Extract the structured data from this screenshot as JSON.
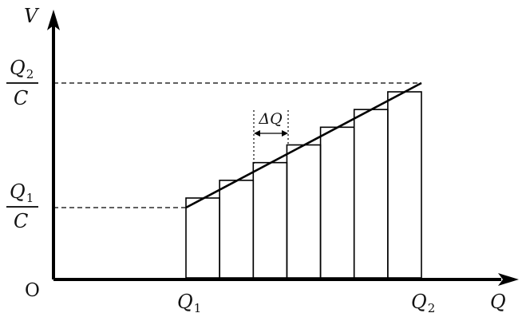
{
  "axes": {
    "y_label": "V",
    "x_label": "Q",
    "origin_label": "O"
  },
  "ticks": {
    "q1_label": "Q",
    "q1_sub": "1",
    "q2_label": "Q",
    "q2_sub": "2",
    "v1_num": "Q",
    "v1_num_sub": "1",
    "v1_den": "C",
    "v2_num": "Q",
    "v2_num_sub": "2",
    "v2_den": "C"
  },
  "annotation": {
    "delta_label": "ΔQ"
  },
  "chart_data": {
    "type": "bar",
    "x_range_labels": [
      "Q1",
      "Q2"
    ],
    "bar_count": 7,
    "bar_heights_relative": [
      0.0,
      0.1667,
      0.3333,
      0.5,
      0.6667,
      0.8333,
      1.0
    ],
    "line": {
      "from": "(Q1, Q1/C)",
      "to": "(Q2, Q2/C)"
    }
  }
}
